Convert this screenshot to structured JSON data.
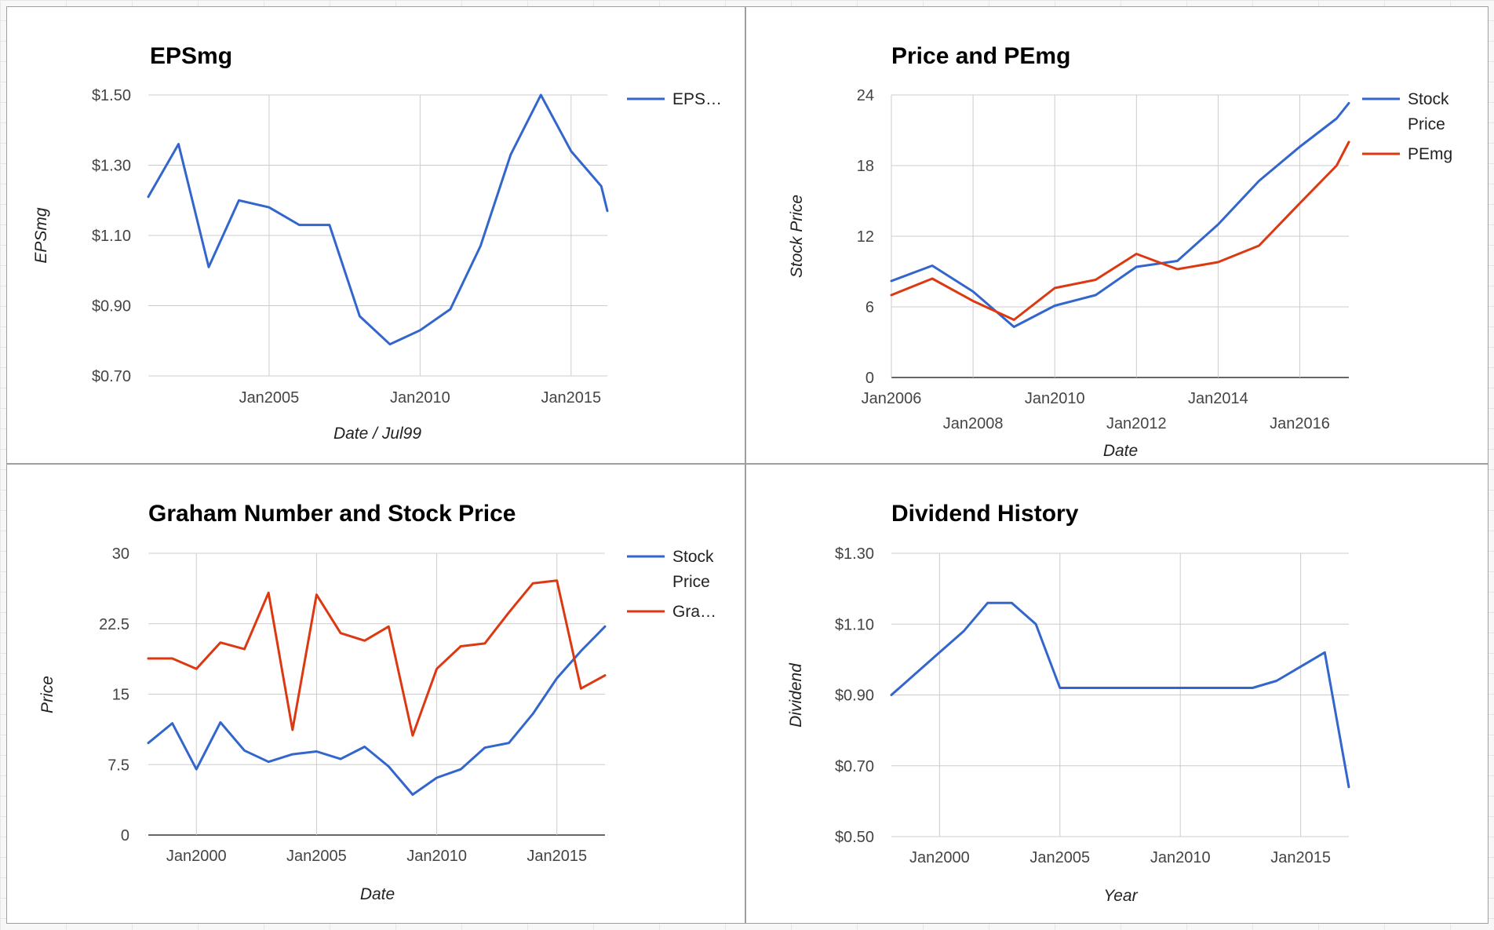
{
  "chart_data": [
    {
      "type": "line",
      "title": "EPSmg",
      "xlabel": "Date / Jul99",
      "ylabel": "EPSmg",
      "x_ticks": [
        "Jan2005",
        "Jan2010",
        "Jan2015"
      ],
      "y_ticks": [
        "$0.70",
        "$0.90",
        "$1.10",
        "$1.30",
        "$1.50"
      ],
      "ylim": [
        0.7,
        1.5
      ],
      "xlim": [
        2001.0,
        2016.2
      ],
      "grid": true,
      "legend_position": "right",
      "series": [
        {
          "name": "EPS…",
          "color": "#3366cc",
          "x": [
            2001.0,
            2002.0,
            2003.0,
            2004.0,
            2005.0,
            2006.0,
            2007.0,
            2008.0,
            2009.0,
            2010.0,
            2011.0,
            2012.0,
            2013.0,
            2014.0,
            2015.0,
            2016.0,
            2016.2
          ],
          "y": [
            1.21,
            1.36,
            1.01,
            1.2,
            1.18,
            1.13,
            1.13,
            0.87,
            0.79,
            0.83,
            0.89,
            1.07,
            1.33,
            1.5,
            1.34,
            1.24,
            1.17
          ]
        }
      ]
    },
    {
      "type": "line",
      "title": "Price and PEmg",
      "xlabel": "Date",
      "ylabel": "Stock Price",
      "x_ticks": [
        "Jan2006",
        "Jan2008",
        "Jan2010",
        "Jan2012",
        "Jan2014",
        "Jan2016"
      ],
      "y_ticks": [
        "0",
        "6",
        "12",
        "18",
        "24"
      ],
      "ylim": [
        0,
        24
      ],
      "xlim": [
        2006,
        2017.2
      ],
      "grid": true,
      "legend_position": "right",
      "series": [
        {
          "name": "Stock Price",
          "color": "#3366cc",
          "x": [
            2006.0,
            2007.0,
            2008.0,
            2009.0,
            2010.0,
            2011.0,
            2012.0,
            2013.0,
            2014.0,
            2015.0,
            2016.0,
            2016.9,
            2017.2
          ],
          "y": [
            8.2,
            9.5,
            7.3,
            4.3,
            6.1,
            7.0,
            9.4,
            9.9,
            13.0,
            16.7,
            19.6,
            22.0,
            23.3
          ]
        },
        {
          "name": "PEmg",
          "color": "#dc3912",
          "x": [
            2006.0,
            2007.0,
            2008.0,
            2009.0,
            2010.0,
            2011.0,
            2012.0,
            2013.0,
            2014.0,
            2015.0,
            2016.0,
            2016.9,
            2017.2
          ],
          "y": [
            7.0,
            8.4,
            6.5,
            4.9,
            7.6,
            8.3,
            10.5,
            9.2,
            9.8,
            11.2,
            14.8,
            18.0,
            20.0
          ]
        }
      ]
    },
    {
      "type": "line",
      "title": "Graham Number and Stock Price",
      "xlabel": "Date",
      "ylabel": "Price",
      "x_ticks": [
        "Jan2000",
        "Jan2005",
        "Jan2010",
        "Jan2015"
      ],
      "y_ticks": [
        "0",
        "7.5",
        "15",
        "22.5",
        "30"
      ],
      "ylim": [
        0,
        30
      ],
      "xlim": [
        1998,
        2017
      ],
      "grid": true,
      "legend_position": "right",
      "series": [
        {
          "name": "Stock Price",
          "color": "#3366cc",
          "x": [
            1998,
            1999,
            2000,
            2001,
            2002,
            2003,
            2004,
            2005,
            2006,
            2007,
            2008,
            2009,
            2010,
            2011,
            2012,
            2013,
            2014,
            2015,
            2016,
            2017
          ],
          "y": [
            9.8,
            11.9,
            7.0,
            12.0,
            9.0,
            7.8,
            8.6,
            8.9,
            8.1,
            9.4,
            7.3,
            4.3,
            6.1,
            7.0,
            9.3,
            9.8,
            12.9,
            16.7,
            19.6,
            22.2
          ]
        },
        {
          "name": "Gra…",
          "color": "#dc3912",
          "x": [
            1998,
            1999,
            2000,
            2001,
            2002,
            2003,
            2004,
            2005,
            2006,
            2007,
            2008,
            2009,
            2010,
            2011,
            2012,
            2013,
            2014,
            2015,
            2016,
            2017
          ],
          "y": [
            18.8,
            18.8,
            17.7,
            20.5,
            19.8,
            25.8,
            11.2,
            25.6,
            21.5,
            20.7,
            22.2,
            10.6,
            17.7,
            20.1,
            20.4,
            23.7,
            26.8,
            27.1,
            15.6,
            17.0
          ]
        }
      ]
    },
    {
      "type": "line",
      "title": "Dividend History",
      "xlabel": "Year",
      "ylabel": "Dividend",
      "x_ticks": [
        "Jan2000",
        "Jan2005",
        "Jan2010",
        "Jan2015"
      ],
      "y_ticks": [
        "$0.50",
        "$0.70",
        "$0.90",
        "$1.10",
        "$1.30"
      ],
      "ylim": [
        0.5,
        1.3
      ],
      "xlim": [
        1998,
        2017
      ],
      "grid": true,
      "series": [
        {
          "name": "",
          "color": "#3366cc",
          "x": [
            1998,
            1999,
            2000,
            2001,
            2002,
            2003,
            2004,
            2005,
            2006,
            2007,
            2008,
            2009,
            2010,
            2011,
            2012,
            2013,
            2014,
            2015,
            2016,
            2017
          ],
          "y": [
            0.9,
            0.96,
            1.02,
            1.08,
            1.16,
            1.16,
            1.1,
            0.92,
            0.92,
            0.92,
            0.92,
            0.92,
            0.92,
            0.92,
            0.92,
            0.92,
            0.94,
            0.98,
            1.02,
            0.64
          ]
        }
      ]
    }
  ]
}
